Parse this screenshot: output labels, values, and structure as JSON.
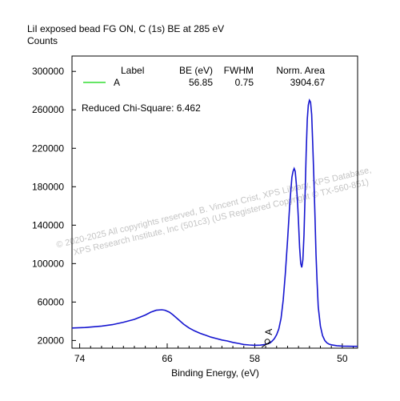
{
  "chart_data": {
    "type": "line",
    "title": "LiI exposed bead FG ON, C (1s) BE at 285 eV",
    "ylabel": "Counts",
    "xlabel": "Binding Energy, (eV)",
    "x_reversed": true,
    "xlim": [
      74.7,
      48.6
    ],
    "ylim": [
      12000,
      316000
    ],
    "x_ticks": [
      74,
      66,
      58,
      50
    ],
    "x_tick_labels": [
      "74",
      "66",
      "58",
      "50"
    ],
    "y_ticks": [
      20000,
      60000,
      100000,
      140000,
      180000,
      220000,
      260000,
      300000
    ],
    "y_tick_labels": [
      "20000",
      "60000",
      "100000",
      "140000",
      "180000",
      "220000",
      "260000",
      "300000"
    ],
    "series": [
      {
        "name": "A",
        "color": "#1515d0",
        "x": [
          74.7,
          73.5,
          72.0,
          71.0,
          70.0,
          69.0,
          68.0,
          67.5,
          67.0,
          66.5,
          66.2,
          65.8,
          65.5,
          65.0,
          64.5,
          64.0,
          63.5,
          63.0,
          62.5,
          62.0,
          61.5,
          61.0,
          60.5,
          60.0,
          59.5,
          59.0,
          58.5,
          58.0,
          57.5,
          57.2,
          56.8,
          56.6,
          56.4,
          56.2,
          56.0,
          55.8,
          55.6,
          55.4,
          55.2,
          55.0,
          54.8,
          54.6,
          54.5,
          54.4,
          54.3,
          54.2,
          54.1,
          54.0,
          53.9,
          53.8,
          53.7,
          53.6,
          53.5,
          53.4,
          53.3,
          53.2,
          53.1,
          53.0,
          52.9,
          52.8,
          52.7,
          52.6,
          52.5,
          52.4,
          52.3,
          52.2,
          52.0,
          51.8,
          51.6,
          51.4,
          51.2,
          51.0,
          50.5,
          50.0,
          49.5,
          49.0,
          48.6
        ],
        "y": [
          33000,
          33500,
          35000,
          36500,
          39000,
          42000,
          46500,
          49500,
          51500,
          52000,
          51500,
          49500,
          47000,
          42000,
          37000,
          33000,
          30000,
          27500,
          25500,
          23500,
          22000,
          20500,
          19500,
          18000,
          17000,
          15800,
          15300,
          15000,
          15200,
          15600,
          16500,
          17500,
          19500,
          22000,
          26000,
          32000,
          43000,
          62000,
          90000,
          125000,
          162000,
          190000,
          196000,
          199000,
          196000,
          183000,
          166000,
          144000,
          117000,
          100000,
          96000,
          104000,
          130000,
          170000,
          215000,
          250000,
          265000,
          270000,
          268000,
          255000,
          225000,
          190000,
          150000,
          110000,
          80000,
          55000,
          35000,
          25000,
          20000,
          17500,
          16200,
          15500,
          14600,
          14200,
          14000,
          13900,
          13900
        ]
      }
    ],
    "legend": {
      "placement": "top",
      "headers": [
        "Label",
        "BE (eV)",
        "FWHM",
        "Norm. Area"
      ],
      "rows": [
        {
          "label": "A",
          "be": "56.85",
          "fwhm": "0.75",
          "area": "3904.67",
          "color": "#33dd33"
        }
      ]
    },
    "annotations": {
      "chi_square": "Reduced Chi-Square: 6.462",
      "peak_label": "A",
      "peak_marker_x": 56.85,
      "peak_marker_y": 15500
    },
    "watermark": {
      "line1": "© 2020-2025 All copyrights reserved,  B. Vincent Crist,  XPS Library,  XPS Database,",
      "line2": "XPS Research Institute, Inc (501c3)  (US Registered Copyright © TX-560-851)"
    },
    "colors": {
      "frame": "#000000",
      "line": "#1515d0",
      "legend_line": "#33dd33",
      "watermark": "#c4c4c4"
    }
  }
}
